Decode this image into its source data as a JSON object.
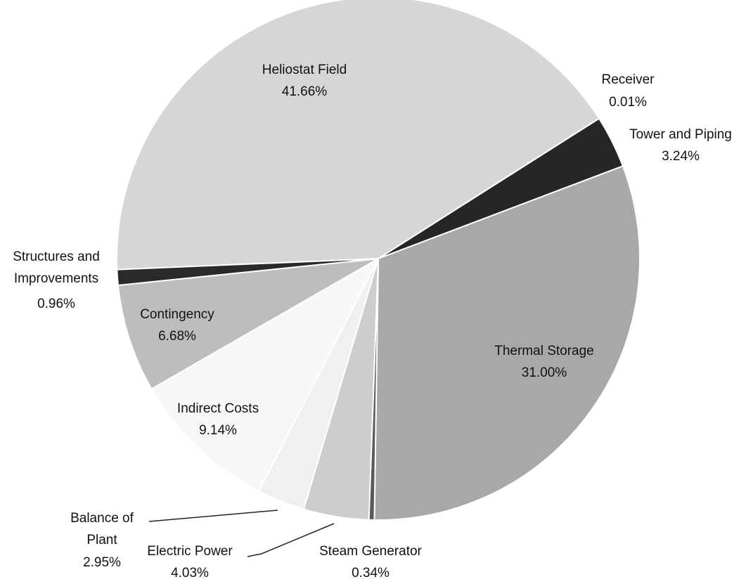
{
  "chart_data": {
    "type": "pie",
    "categories": [
      "Heliostat Field",
      "Receiver",
      "Tower and Piping",
      "Thermal Storage",
      "Steam Generator",
      "Electric Power",
      "Balance of Plant",
      "Indirect Costs",
      "Contingency",
      "Structures and Improvements"
    ],
    "values": [
      41.66,
      0.01,
      3.24,
      31.0,
      0.34,
      4.03,
      2.95,
      9.14,
      6.68,
      0.96
    ],
    "value_labels": [
      "41.66%",
      "0.01%",
      "3.24%",
      "31.00%",
      "0.34%",
      "4.03%",
      "2.95%",
      "9.14%",
      "6.68%",
      "0.96%"
    ],
    "colors": [
      "#d6d6d6",
      "#3a3a3a",
      "#262626",
      "#a8a8a8",
      "#5a5a5a",
      "#cdcdcd",
      "#f0f0f0",
      "#f7f7f7",
      "#bdbdbd",
      "#2a2a2a"
    ]
  }
}
